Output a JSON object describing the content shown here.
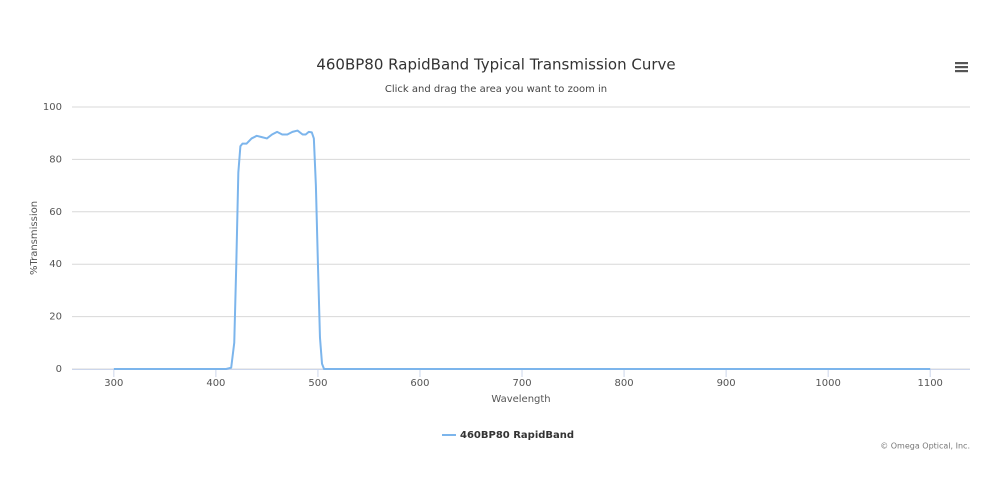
{
  "chart_data": {
    "type": "line",
    "title": "460BP80 RapidBand Typical Transmission Curve",
    "subtitle": "Click and drag the area you want to zoom in",
    "x_label": "Wavelength",
    "y_label": "%Transmission",
    "credit": "© Omega Optical, Inc.",
    "xlim": [
      259,
      1139
    ],
    "xticks": [
      300,
      400,
      500,
      600,
      700,
      800,
      900,
      1000,
      1100
    ],
    "ylim": [
      0,
      100
    ],
    "yticks": [
      0,
      20,
      40,
      60,
      80,
      100
    ],
    "grid": true,
    "legend": "bottom",
    "series": [
      {
        "name": "460BP80 RapidBand",
        "color": "#7cb5ec",
        "x": [
          300,
          410,
          415,
          418,
          420,
          422,
          424,
          426,
          430,
          435,
          440,
          445,
          450,
          455,
          460,
          465,
          470,
          475,
          480,
          485,
          488,
          491,
          494,
          496,
          498,
          500,
          502,
          504,
          506,
          600,
          800,
          1100
        ],
        "values": [
          0,
          0,
          0.5,
          10,
          40,
          75,
          85,
          86,
          86,
          88,
          89,
          88.5,
          88,
          89.5,
          90.5,
          89.5,
          89.5,
          90.5,
          91,
          89.5,
          89.5,
          90.5,
          90.3,
          88,
          70,
          40,
          12,
          2,
          0,
          0,
          0,
          0
        ]
      }
    ]
  }
}
